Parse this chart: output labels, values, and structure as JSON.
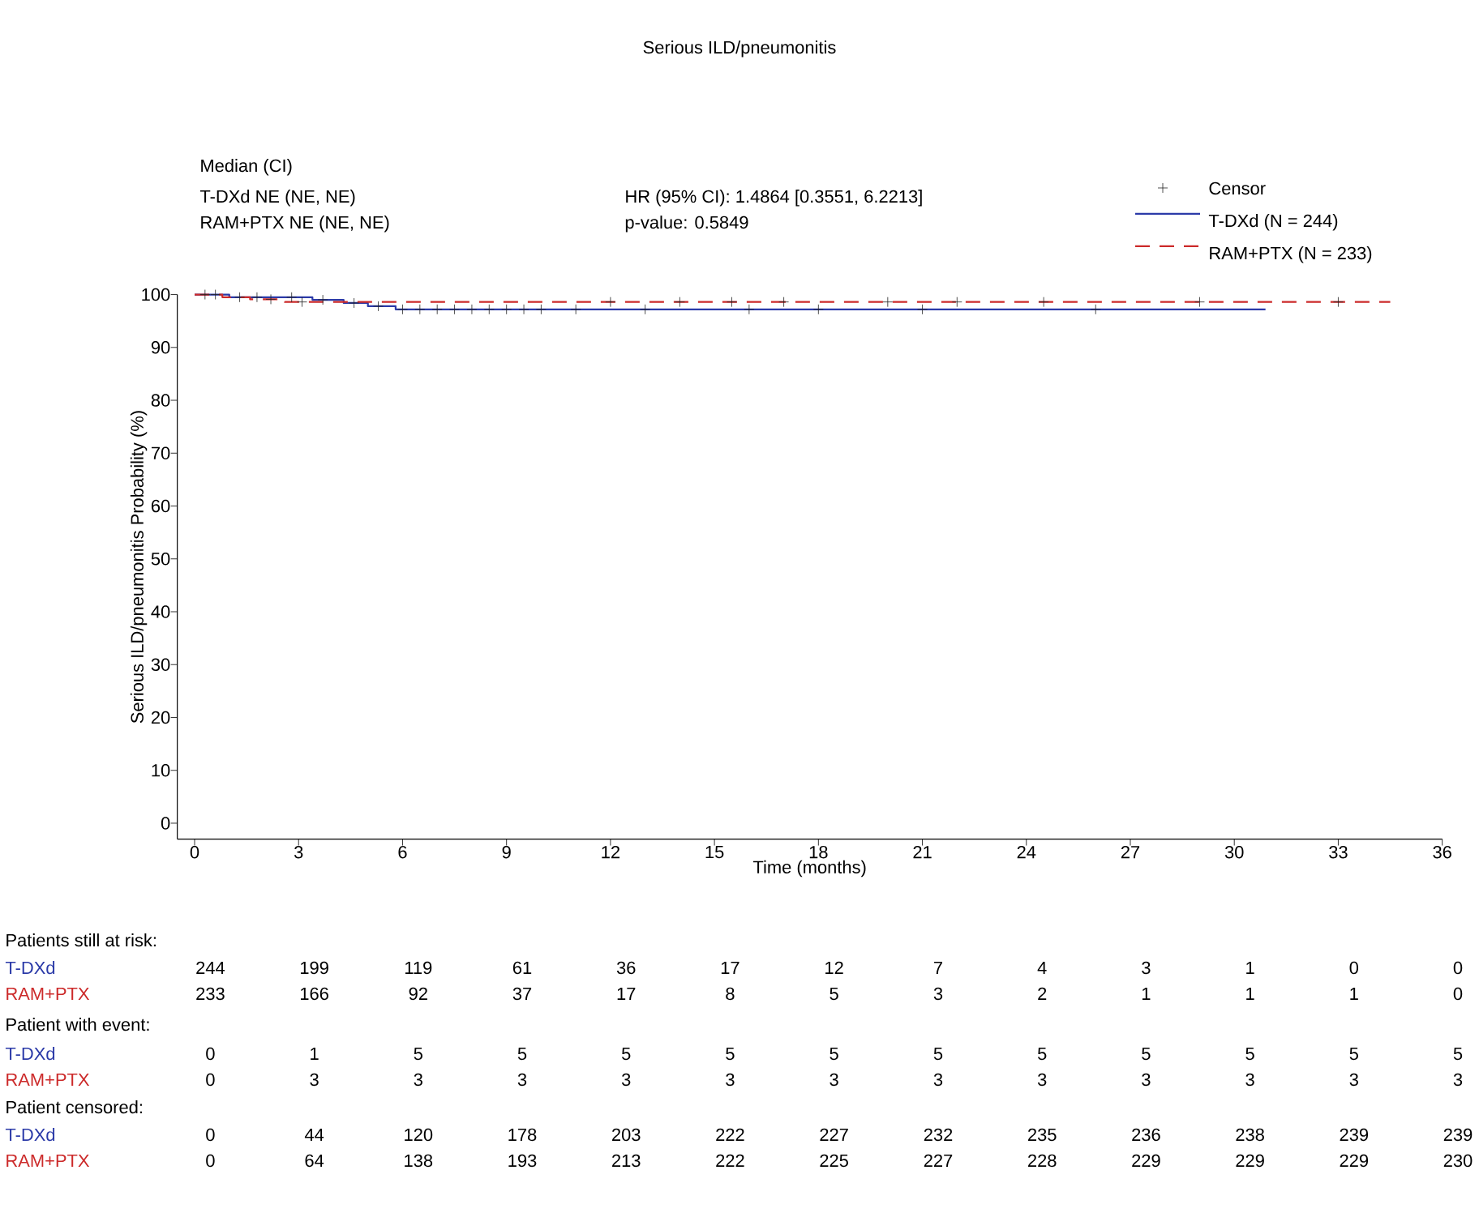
{
  "chart_data": {
    "type": "step",
    "title": "Serious ILD/pneumonitis",
    "xlabel": "Time (months)",
    "ylabel": "Serious ILD/pneumonitis Probability (%)",
    "xlim": [
      -0.5,
      36
    ],
    "ylim": [
      -3,
      100
    ],
    "xticks": [
      0,
      3,
      6,
      9,
      12,
      15,
      18,
      21,
      24,
      27,
      30,
      33,
      36
    ],
    "yticks": [
      0,
      10,
      20,
      30,
      40,
      50,
      60,
      70,
      80,
      90,
      100
    ],
    "grid": false,
    "legend": "top right",
    "series": [
      {
        "name": "Censor",
        "type": "scatter",
        "marker": "cross",
        "color": "#222222",
        "x": [
          0.3,
          0.6,
          1.3,
          1.8,
          2.2,
          2.8,
          3.1,
          3.7,
          4.6,
          5.3,
          6.0,
          6.5,
          7.0,
          7.5,
          8.0,
          8.5,
          9.0,
          9.5,
          10,
          11,
          12,
          13,
          14,
          15.5,
          16,
          17,
          18,
          20,
          21,
          22,
          24.5,
          26,
          29,
          33
        ],
        "values": [
          100,
          100,
          99.5,
          99.5,
          99.1,
          99.5,
          98.6,
          99.0,
          98.4,
          97.8,
          97.2,
          97.2,
          97.2,
          97.2,
          97.2,
          97.2,
          97.2,
          97.2,
          97.2,
          97.2,
          98.6,
          97.2,
          98.6,
          98.6,
          97.2,
          98.6,
          97.2,
          98.6,
          97.2,
          98.6,
          98.6,
          97.2,
          98.6,
          98.6
        ]
      },
      {
        "name": "T-DXd (N = 244)",
        "color": "#2b3aa8",
        "line_style": "solid",
        "x": [
          0,
          1.0,
          3.4,
          4.3,
          5.0,
          5.8,
          30.9
        ],
        "values": [
          100,
          99.5,
          99.0,
          98.4,
          97.8,
          97.2,
          97.2
        ]
      },
      {
        "name": "RAM+PTX (N = 233)",
        "color": "#cc2a2a",
        "line_style": "dashed",
        "x": [
          0,
          0.8,
          1.6,
          2.6,
          34.5
        ],
        "values": [
          100,
          99.5,
          99.1,
          98.6,
          98.6
        ]
      }
    ],
    "annotations": [
      "Median (CI)",
      "T-DXd  NE (NE, NE)",
      "RAM+PTX  NE (NE, NE)",
      "HR (95% CI): 1.4864 [0.3551, 6.2213]",
      "p-value: 0.5849",
      "Patients still at risk:",
      "T-DXd",
      "244",
      "199",
      "119",
      "61",
      "36",
      "17",
      "12",
      "7",
      "4",
      "3",
      "1",
      "0",
      "0",
      "RAM+PTX",
      "233",
      "166",
      "92",
      "37",
      "17",
      "8",
      "5",
      "3",
      "2",
      "1",
      "1",
      "1",
      "0",
      "Patient with event:",
      "T-DXd",
      "0",
      "1",
      "5",
      "5",
      "5",
      "5",
      "5",
      "5",
      "5",
      "5",
      "5",
      "5",
      "5",
      "RAM+PTX",
      "0",
      "3",
      "3",
      "3",
      "3",
      "3",
      "3",
      "3",
      "3",
      "3",
      "3",
      "3",
      "3",
      "Patient censored:",
      "T-DXd",
      "0",
      "44",
      "120",
      "178",
      "203",
      "222",
      "227",
      "232",
      "235",
      "236",
      "238",
      "239",
      "239",
      "RAM+PTX",
      "0",
      "64",
      "138",
      "193",
      "213",
      "222",
      "225",
      "227",
      "228",
      "229",
      "229",
      "229",
      "230"
    ]
  }
}
